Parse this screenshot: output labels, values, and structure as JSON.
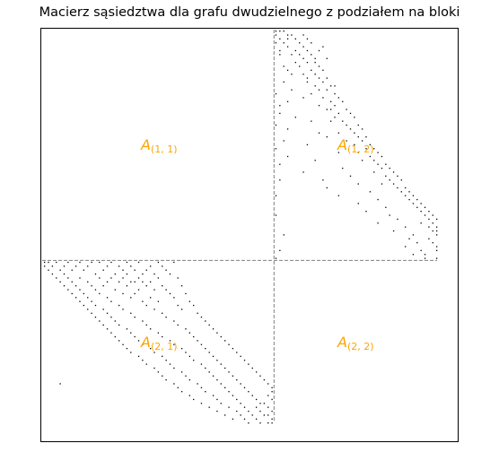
{
  "chart_data": {
    "type": "heatmap",
    "title": "Macierz sąsiedztwa dla grafu dwudzielnego z podziałem na bloki",
    "n_rows": 101,
    "n_cols": 101,
    "block_split": 59,
    "axes_visible": false,
    "colors": {
      "nonzero": "#000000",
      "divider": "#808080",
      "block_label": "#ffa500",
      "frame": "#000000"
    },
    "block_labels": [
      {
        "id": "A11",
        "base": "A",
        "sub": "(1, 1)"
      },
      {
        "id": "A12",
        "base": "A",
        "sub": "(1, 2)"
      },
      {
        "id": "A21",
        "base": "A",
        "sub": "(2, 1)"
      },
      {
        "id": "A22",
        "base": "A",
        "sub": "(2, 2)"
      }
    ],
    "nonzero_entries": [
      [
        0,
        59
      ],
      [
        0,
        60
      ],
      [
        0,
        61
      ],
      [
        1,
        59
      ],
      [
        1,
        62
      ],
      [
        1,
        63
      ],
      [
        2,
        60
      ],
      [
        2,
        64
      ],
      [
        2,
        62
      ],
      [
        3,
        59
      ],
      [
        3,
        61
      ],
      [
        3,
        65
      ],
      [
        4,
        62
      ],
      [
        4,
        66
      ],
      [
        5,
        60
      ],
      [
        5,
        64
      ],
      [
        5,
        67
      ],
      [
        6,
        63
      ],
      [
        6,
        65
      ],
      [
        6,
        68
      ],
      [
        7,
        66
      ],
      [
        7,
        69
      ],
      [
        8,
        64
      ],
      [
        8,
        67
      ],
      [
        9,
        65
      ],
      [
        9,
        70
      ],
      [
        10,
        68
      ],
      [
        10,
        71
      ],
      [
        11,
        66
      ],
      [
        11,
        69
      ],
      [
        12,
        70
      ],
      [
        12,
        72
      ],
      [
        13,
        67
      ],
      [
        13,
        71
      ],
      [
        14,
        69
      ],
      [
        14,
        73
      ],
      [
        15,
        72
      ],
      [
        15,
        70
      ],
      [
        16,
        68
      ],
      [
        16,
        74
      ],
      [
        17,
        71
      ],
      [
        17,
        75
      ],
      [
        18,
        73
      ],
      [
        18,
        76
      ],
      [
        19,
        70
      ],
      [
        19,
        74
      ],
      [
        20,
        72
      ],
      [
        20,
        77
      ],
      [
        21,
        75
      ],
      [
        21,
        78
      ],
      [
        22,
        74
      ],
      [
        22,
        79
      ],
      [
        23,
        76
      ],
      [
        23,
        73
      ],
      [
        24,
        77
      ],
      [
        24,
        80
      ],
      [
        25,
        78
      ],
      [
        25,
        81
      ],
      [
        26,
        75
      ],
      [
        26,
        79
      ],
      [
        27,
        80
      ],
      [
        27,
        82
      ],
      [
        28,
        81
      ],
      [
        28,
        77
      ],
      [
        29,
        83
      ],
      [
        29,
        79
      ],
      [
        30,
        82
      ],
      [
        30,
        84
      ],
      [
        31,
        80
      ],
      [
        31,
        85
      ],
      [
        32,
        83
      ],
      [
        32,
        86
      ],
      [
        33,
        84
      ],
      [
        33,
        81
      ],
      [
        34,
        85
      ],
      [
        34,
        87
      ],
      [
        35,
        86
      ],
      [
        35,
        88
      ],
      [
        36,
        84
      ],
      [
        36,
        89
      ],
      [
        37,
        87
      ],
      [
        37,
        90
      ],
      [
        38,
        88
      ],
      [
        38,
        91
      ],
      [
        39,
        89
      ],
      [
        39,
        86
      ],
      [
        40,
        90
      ],
      [
        40,
        92
      ],
      [
        41,
        91
      ],
      [
        41,
        93
      ],
      [
        42,
        92
      ],
      [
        42,
        94
      ],
      [
        43,
        93
      ],
      [
        43,
        95
      ],
      [
        44,
        94
      ],
      [
        44,
        96
      ],
      [
        45,
        95
      ],
      [
        45,
        97
      ],
      [
        46,
        96
      ],
      [
        46,
        98
      ],
      [
        47,
        97
      ],
      [
        47,
        99
      ],
      [
        48,
        98
      ],
      [
        48,
        100
      ],
      [
        49,
        99
      ],
      [
        49,
        96
      ],
      [
        50,
        100
      ],
      [
        50,
        98
      ],
      [
        51,
        99
      ],
      [
        51,
        100
      ],
      [
        52,
        100
      ],
      [
        53,
        98
      ],
      [
        54,
        99
      ],
      [
        55,
        100
      ],
      [
        56,
        100
      ],
      [
        57,
        97
      ],
      [
        58,
        100
      ],
      [
        1,
        66
      ],
      [
        3,
        68
      ],
      [
        4,
        71
      ],
      [
        6,
        60
      ],
      [
        8,
        69
      ],
      [
        9,
        61
      ],
      [
        10,
        62
      ],
      [
        12,
        67
      ],
      [
        14,
        74
      ],
      [
        15,
        63
      ],
      [
        17,
        66
      ],
      [
        18,
        62
      ],
      [
        20,
        73
      ],
      [
        21,
        60
      ],
      [
        22,
        64
      ],
      [
        23,
        68
      ],
      [
        25,
        62
      ],
      [
        26,
        70
      ],
      [
        27,
        72
      ],
      [
        28,
        61
      ],
      [
        29,
        67
      ],
      [
        31,
        75
      ],
      [
        32,
        62
      ],
      [
        33,
        69
      ],
      [
        35,
        76
      ],
      [
        36,
        66
      ],
      [
        37,
        78
      ],
      [
        38,
        71
      ],
      [
        39,
        80
      ],
      [
        40,
        72
      ],
      [
        41,
        83
      ],
      [
        42,
        75
      ],
      [
        43,
        85
      ],
      [
        44,
        80
      ],
      [
        45,
        87
      ],
      [
        46,
        82
      ],
      [
        47,
        88
      ],
      [
        48,
        90
      ],
      [
        49,
        85
      ],
      [
        50,
        92
      ],
      [
        51,
        89
      ],
      [
        52,
        94
      ],
      [
        53,
        93
      ],
      [
        54,
        95
      ],
      [
        55,
        92
      ],
      [
        56,
        96
      ],
      [
        57,
        94
      ],
      [
        58,
        97
      ],
      [
        2,
        67
      ],
      [
        5,
        70
      ],
      [
        7,
        72
      ],
      [
        11,
        63
      ],
      [
        13,
        61
      ],
      [
        16,
        59
      ],
      [
        19,
        60
      ],
      [
        24,
        59
      ],
      [
        30,
        59
      ],
      [
        34,
        60
      ],
      [
        38,
        60
      ],
      [
        42,
        59
      ],
      [
        47,
        59
      ],
      [
        52,
        61
      ],
      [
        56,
        60
      ],
      [
        58,
        59
      ]
    ],
    "lower_block_entries": [
      [
        59,
        0
      ],
      [
        59,
        1
      ],
      [
        59,
        3
      ],
      [
        59,
        6
      ],
      [
        59,
        9
      ],
      [
        59,
        12
      ],
      [
        59,
        14
      ],
      [
        59,
        17
      ],
      [
        59,
        21
      ],
      [
        59,
        24
      ],
      [
        59,
        29
      ],
      [
        59,
        33
      ],
      [
        60,
        0
      ],
      [
        60,
        2
      ],
      [
        60,
        5
      ],
      [
        60,
        8
      ],
      [
        60,
        11
      ],
      [
        60,
        16
      ],
      [
        60,
        19
      ],
      [
        60,
        22
      ],
      [
        60,
        27
      ],
      [
        60,
        30
      ],
      [
        61,
        1
      ],
      [
        61,
        4
      ],
      [
        61,
        7
      ],
      [
        61,
        10
      ],
      [
        61,
        15
      ],
      [
        61,
        20
      ],
      [
        61,
        23
      ],
      [
        61,
        26
      ],
      [
        61,
        31
      ],
      [
        62,
        2
      ],
      [
        62,
        5
      ],
      [
        62,
        13
      ],
      [
        62,
        18
      ],
      [
        62,
        21
      ],
      [
        62,
        25
      ],
      [
        62,
        28
      ],
      [
        62,
        32
      ],
      [
        63,
        3
      ],
      [
        63,
        6
      ],
      [
        63,
        9
      ],
      [
        63,
        14
      ],
      [
        63,
        17
      ],
      [
        63,
        20
      ],
      [
        63,
        24
      ],
      [
        63,
        29
      ],
      [
        63,
        34
      ],
      [
        64,
        4
      ],
      [
        64,
        7
      ],
      [
        64,
        11
      ],
      [
        64,
        16
      ],
      [
        64,
        19
      ],
      [
        64,
        22
      ],
      [
        64,
        23
      ],
      [
        64,
        25
      ],
      [
        64,
        27
      ],
      [
        65,
        5
      ],
      [
        65,
        8
      ],
      [
        65,
        12
      ],
      [
        65,
        15
      ],
      [
        65,
        21
      ],
      [
        65,
        26
      ],
      [
        65,
        30
      ],
      [
        65,
        35
      ],
      [
        66,
        6
      ],
      [
        66,
        9
      ],
      [
        66,
        13
      ],
      [
        66,
        18
      ],
      [
        66,
        24
      ],
      [
        66,
        28
      ],
      [
        66,
        31
      ],
      [
        67,
        7
      ],
      [
        67,
        10
      ],
      [
        67,
        14
      ],
      [
        67,
        20
      ],
      [
        67,
        23
      ],
      [
        67,
        32
      ],
      [
        67,
        36
      ],
      [
        68,
        8
      ],
      [
        68,
        11
      ],
      [
        68,
        16
      ],
      [
        68,
        22
      ],
      [
        68,
        27
      ],
      [
        68,
        33
      ],
      [
        69,
        9
      ],
      [
        69,
        12
      ],
      [
        69,
        17
      ],
      [
        69,
        25
      ],
      [
        69,
        29
      ],
      [
        69,
        37
      ],
      [
        70,
        10
      ],
      [
        70,
        13
      ],
      [
        70,
        19
      ],
      [
        70,
        26
      ],
      [
        70,
        34
      ],
      [
        70,
        38
      ],
      [
        71,
        11
      ],
      [
        71,
        15
      ],
      [
        71,
        20
      ],
      [
        71,
        28
      ],
      [
        71,
        35
      ],
      [
        72,
        12
      ],
      [
        72,
        16
      ],
      [
        72,
        22
      ],
      [
        72,
        30
      ],
      [
        72,
        39
      ],
      [
        73,
        13
      ],
      [
        73,
        17
      ],
      [
        73,
        23
      ],
      [
        73,
        31
      ],
      [
        73,
        40
      ],
      [
        74,
        14
      ],
      [
        74,
        18
      ],
      [
        74,
        25
      ],
      [
        74,
        33
      ],
      [
        74,
        41
      ],
      [
        75,
        15
      ],
      [
        75,
        19
      ],
      [
        75,
        26
      ],
      [
        75,
        34
      ],
      [
        75,
        42
      ],
      [
        76,
        16
      ],
      [
        76,
        21
      ],
      [
        76,
        27
      ],
      [
        76,
        36
      ],
      [
        76,
        43
      ],
      [
        77,
        17
      ],
      [
        77,
        22
      ],
      [
        77,
        29
      ],
      [
        77,
        37
      ],
      [
        77,
        44
      ],
      [
        78,
        18
      ],
      [
        78,
        23
      ],
      [
        78,
        30
      ],
      [
        78,
        38
      ],
      [
        78,
        45
      ],
      [
        79,
        19
      ],
      [
        79,
        24
      ],
      [
        79,
        32
      ],
      [
        79,
        39
      ],
      [
        79,
        46
      ],
      [
        80,
        20
      ],
      [
        80,
        25
      ],
      [
        80,
        33
      ],
      [
        80,
        40
      ],
      [
        80,
        47
      ],
      [
        81,
        21
      ],
      [
        81,
        27
      ],
      [
        81,
        35
      ],
      [
        81,
        41
      ],
      [
        81,
        48
      ],
      [
        82,
        22
      ],
      [
        82,
        28
      ],
      [
        82,
        36
      ],
      [
        82,
        42
      ],
      [
        82,
        49
      ],
      [
        83,
        24
      ],
      [
        83,
        30
      ],
      [
        83,
        37
      ],
      [
        83,
        43
      ],
      [
        83,
        50
      ],
      [
        84,
        25
      ],
      [
        84,
        31
      ],
      [
        84,
        38
      ],
      [
        84,
        44
      ],
      [
        84,
        51
      ],
      [
        85,
        26
      ],
      [
        85,
        32
      ],
      [
        85,
        40
      ],
      [
        85,
        45
      ],
      [
        85,
        52
      ],
      [
        86,
        28
      ],
      [
        86,
        33
      ],
      [
        86,
        41
      ],
      [
        86,
        46
      ],
      [
        86,
        53
      ],
      [
        87,
        29
      ],
      [
        87,
        35
      ],
      [
        87,
        42
      ],
      [
        87,
        47
      ],
      [
        87,
        54
      ],
      [
        88,
        30
      ],
      [
        88,
        36
      ],
      [
        88,
        43
      ],
      [
        88,
        48
      ],
      [
        88,
        55
      ],
      [
        89,
        31
      ],
      [
        89,
        37
      ],
      [
        89,
        44
      ],
      [
        89,
        49
      ],
      [
        89,
        56
      ],
      [
        90,
        4
      ],
      [
        90,
        33
      ],
      [
        90,
        39
      ],
      [
        90,
        45
      ],
      [
        90,
        50
      ],
      [
        90,
        57
      ],
      [
        91,
        34
      ],
      [
        91,
        40
      ],
      [
        91,
        46
      ],
      [
        91,
        51
      ],
      [
        91,
        58
      ],
      [
        92,
        35
      ],
      [
        92,
        41
      ],
      [
        92,
        47
      ],
      [
        92,
        52
      ],
      [
        92,
        58
      ],
      [
        93,
        37
      ],
      [
        93,
        43
      ],
      [
        93,
        48
      ],
      [
        93,
        53
      ],
      [
        93,
        57
      ],
      [
        94,
        38
      ],
      [
        94,
        44
      ],
      [
        94,
        49
      ],
      [
        94,
        54
      ],
      [
        94,
        58
      ],
      [
        95,
        40
      ],
      [
        95,
        45
      ],
      [
        95,
        50
      ],
      [
        95,
        55
      ],
      [
        95,
        56
      ],
      [
        96,
        42
      ],
      [
        96,
        47
      ],
      [
        96,
        51
      ],
      [
        96,
        54
      ],
      [
        96,
        57
      ],
      [
        97,
        44
      ],
      [
        97,
        49
      ],
      [
        97,
        52
      ],
      [
        97,
        55
      ],
      [
        97,
        58
      ],
      [
        98,
        46
      ],
      [
        98,
        50
      ],
      [
        98,
        53
      ],
      [
        98,
        56
      ],
      [
        98,
        57
      ],
      [
        99,
        48
      ],
      [
        99,
        51
      ],
      [
        99,
        54
      ],
      [
        99,
        58
      ],
      [
        100,
        52
      ],
      [
        100,
        55
      ],
      [
        100,
        57
      ],
      [
        100,
        58
      ]
    ]
  }
}
